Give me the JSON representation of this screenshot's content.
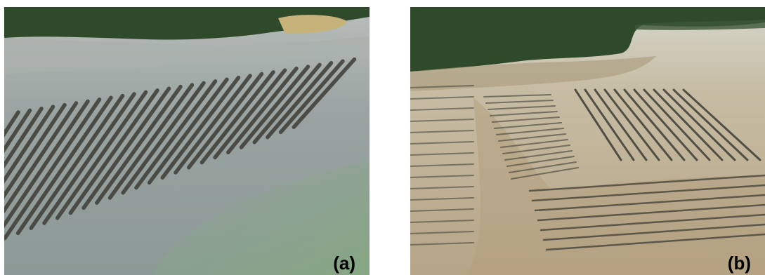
{
  "figure": {
    "panels": [
      {
        "id": "a",
        "label": "(a)"
      },
      {
        "id": "b",
        "label": "(b)"
      }
    ]
  },
  "colors": {
    "forest": "#2f4a2a",
    "water_a": "#8f9a98",
    "water_green": "#7f9e86",
    "mud_b": "#b9a888",
    "racks": "#3e3d36"
  }
}
